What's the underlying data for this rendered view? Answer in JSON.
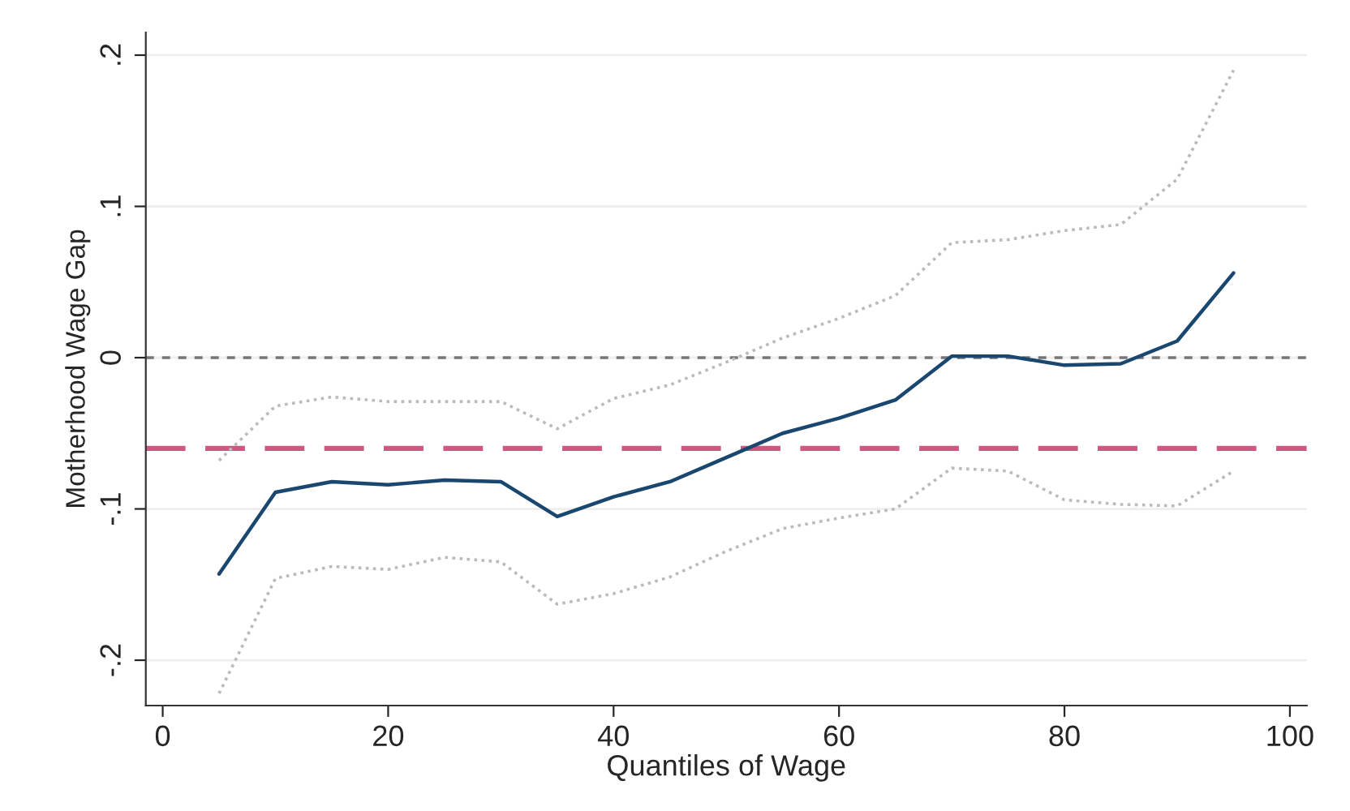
{
  "chart_data": {
    "type": "line",
    "xlabel": "Quantiles of Wage",
    "ylabel": "Motherhood Wage Gap",
    "x": [
      5,
      10,
      15,
      20,
      25,
      30,
      35,
      40,
      45,
      50,
      55,
      60,
      65,
      70,
      75,
      80,
      85,
      90,
      95
    ],
    "series": [
      {
        "color": "#bbbbbb",
        "line_style": "dotted",
        "values": [
          -0.068,
          -0.032,
          -0.026,
          -0.029,
          -0.029,
          -0.029,
          -0.047,
          -0.027,
          -0.018,
          -0.003,
          0.013,
          0.026,
          0.041,
          0.076,
          0.078,
          0.084,
          0.088,
          0.118,
          0.19
        ]
      },
      {
        "color": "#bbbbbb",
        "line_style": "dotted",
        "values": [
          -0.222,
          -0.146,
          -0.138,
          -0.14,
          -0.132,
          -0.135,
          -0.163,
          -0.156,
          -0.145,
          -0.128,
          -0.113,
          -0.106,
          -0.1,
          -0.073,
          -0.075,
          -0.094,
          -0.097,
          -0.098,
          -0.075
        ]
      },
      {
        "color": "#1a476f",
        "line_style": "solid",
        "values": [
          -0.143,
          -0.089,
          -0.082,
          -0.084,
          -0.081,
          -0.082,
          -0.105,
          -0.092,
          -0.082,
          -0.066,
          -0.05,
          -0.04,
          -0.028,
          0.001,
          0.001,
          -0.005,
          -0.004,
          0.011,
          0.056
        ]
      }
    ],
    "ref_lines": [
      {
        "axis": "y",
        "value": 0,
        "color": "#777777",
        "line_style": "dashed"
      },
      {
        "axis": "y",
        "value": -0.06,
        "color": "#d0587e",
        "line_style": "longdash"
      }
    ],
    "xlim": [
      -1.5,
      101.5
    ],
    "ylim": [
      -0.23,
      0.215
    ],
    "xticks": [
      0,
      20,
      40,
      60,
      80,
      100
    ],
    "yticks": [
      {
        "value": -0.2,
        "label": "-.2"
      },
      {
        "value": -0.1,
        "label": "-.1"
      },
      {
        "value": 0,
        "label": "0"
      },
      {
        "value": 0.1,
        "label": ".1"
      },
      {
        "value": 0.2,
        "label": ".2"
      }
    ],
    "grid": "y",
    "legend": false
  }
}
